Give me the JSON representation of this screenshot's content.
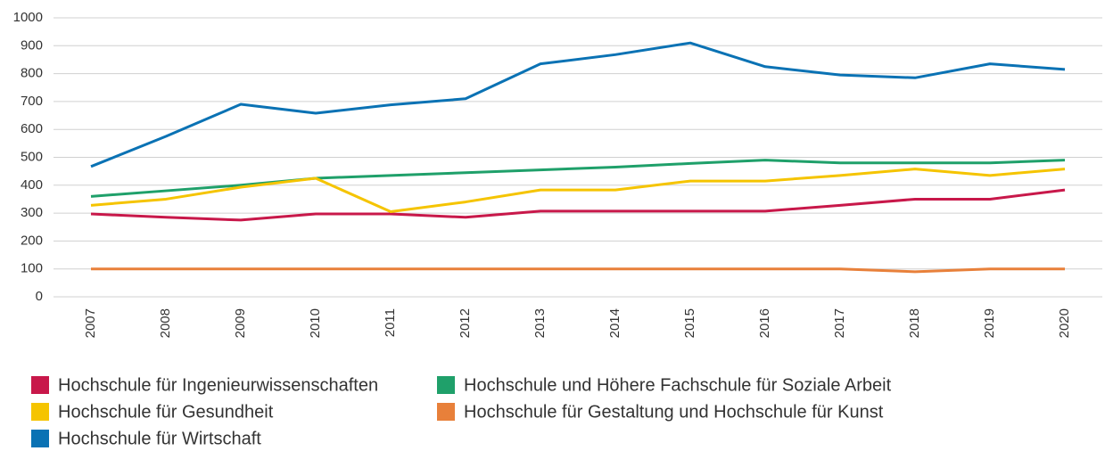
{
  "chart_data": {
    "type": "line",
    "categories": [
      "2007",
      "2008",
      "2009",
      "2010",
      "2011",
      "2012",
      "2013",
      "2014",
      "2015",
      "2016",
      "2017",
      "2018",
      "2019",
      "2020"
    ],
    "series": [
      {
        "name": "Hochschule für Ingenieurwissenschaften",
        "color": "#c8184a",
        "values": [
          297,
          285,
          275,
          297,
          297,
          285,
          307,
          307,
          307,
          307,
          328,
          350,
          350,
          383
        ]
      },
      {
        "name": "Hochschule und Höhere Fachschule für Soziale Arbeit",
        "color": "#1fa06a",
        "values": [
          360,
          380,
          400,
          425,
          435,
          445,
          455,
          465,
          478,
          490,
          480,
          480,
          480,
          490
        ]
      },
      {
        "name": "Hochschule für Gesundheit",
        "color": "#f5c400",
        "values": [
          328,
          350,
          393,
          425,
          305,
          340,
          383,
          383,
          415,
          415,
          435,
          458,
          435,
          458
        ]
      },
      {
        "name": "Hochschule für Gestaltung und Hochschule für Kunst",
        "color": "#e8803a",
        "values": [
          100,
          100,
          100,
          100,
          100,
          100,
          100,
          100,
          100,
          100,
          100,
          90,
          100,
          100
        ]
      },
      {
        "name": "Hochschule für Wirtschaft",
        "color": "#0a72b4",
        "values": [
          467,
          575,
          690,
          658,
          688,
          710,
          835,
          868,
          910,
          825,
          795,
          785,
          835,
          815
        ]
      }
    ],
    "ylim": [
      0,
      1000
    ],
    "yticks": [
      0,
      100,
      200,
      300,
      400,
      500,
      600,
      700,
      800,
      900,
      1000
    ],
    "grid": true
  }
}
